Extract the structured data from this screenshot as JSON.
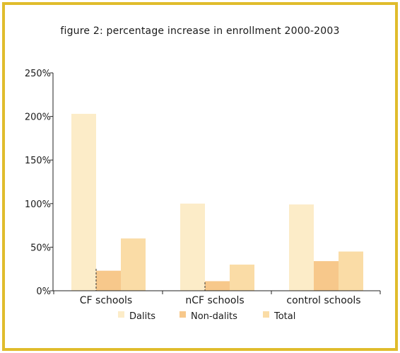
{
  "colors": {
    "border": "#e0bc2c",
    "dalits": "#fcecc8",
    "non_dalits": "#f7c88b",
    "total": "#fadca6",
    "axis": "#222222"
  },
  "chart_data": {
    "type": "bar",
    "title": "figure 2:  percentage increase in enrollment  2000-2003",
    "xlabel": "",
    "ylabel": "",
    "categories": [
      "CF schools",
      "nCF schools",
      "control schools"
    ],
    "series": [
      {
        "name": "Dalits",
        "values": [
          203,
          100,
          99
        ]
      },
      {
        "name": "Non-dalits",
        "values": [
          23,
          11,
          34
        ]
      },
      {
        "name": "Total",
        "values": [
          60,
          30,
          45
        ]
      }
    ],
    "ylim": [
      0,
      250
    ],
    "yticks": [
      0,
      50,
      100,
      150,
      200,
      250
    ],
    "ytick_labels": [
      "0%",
      "50%",
      "100%",
      "150%",
      "200%",
      "250%"
    ],
    "grid": false,
    "legend": "bottom"
  }
}
